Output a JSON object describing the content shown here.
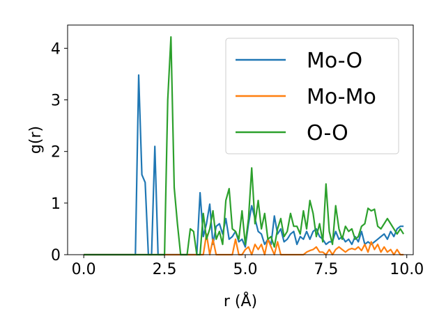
{
  "chart_data": {
    "type": "line",
    "xlabel": "r (Å)",
    "ylabel": "g(r)",
    "xlim": [
      -0.5,
      10.2
    ],
    "ylim": [
      0,
      4.45
    ],
    "xticks": [
      0.0,
      2.5,
      5.0,
      7.5,
      10.0
    ],
    "xtick_labels": [
      "0.0",
      "2.5",
      "5.0",
      "7.5",
      "10.0"
    ],
    "yticks": [
      0,
      1,
      2,
      3,
      4
    ],
    "ytick_labels": [
      "0",
      "1",
      "2",
      "3",
      "4"
    ],
    "grid": false,
    "legend_position": "top-right",
    "series": [
      {
        "name": "Mo-O",
        "color": "#1f77b4",
        "x": [
          0.0,
          1.6,
          1.7,
          1.8,
          1.9,
          2.0,
          2.1,
          2.2,
          2.3,
          3.5,
          3.6,
          3.7,
          3.8,
          3.9,
          4.0,
          4.1,
          4.2,
          4.3,
          4.4,
          4.5,
          4.6,
          4.7,
          4.8,
          4.9,
          5.0,
          5.1,
          5.2,
          5.3,
          5.4,
          5.5,
          5.6,
          5.7,
          5.8,
          5.9,
          6.0,
          6.1,
          6.2,
          6.3,
          6.4,
          6.5,
          6.6,
          6.7,
          6.8,
          6.9,
          7.0,
          7.1,
          7.2,
          7.3,
          7.4,
          7.5,
          7.6,
          7.7,
          7.8,
          7.9,
          8.0,
          8.1,
          8.2,
          8.3,
          8.4,
          8.5,
          8.6,
          8.7,
          8.8,
          8.9,
          9.0,
          9.1,
          9.2,
          9.3,
          9.4,
          9.5,
          9.6,
          9.7,
          9.8,
          9.9
        ],
        "y": [
          0,
          0,
          3.48,
          1.55,
          1.4,
          0,
          0,
          2.1,
          0,
          0,
          1.2,
          0.35,
          0.6,
          0.98,
          0.2,
          0.55,
          0.6,
          0.4,
          0.7,
          0.3,
          0.35,
          0.45,
          0.25,
          0.3,
          0.15,
          0.6,
          0.95,
          0.7,
          0.45,
          0.4,
          0.2,
          0.3,
          0.2,
          0.75,
          0.4,
          0.5,
          0.25,
          0.3,
          0.4,
          0.45,
          0.2,
          0.35,
          0.3,
          0.45,
          0.3,
          0.45,
          0.5,
          0.35,
          0.3,
          0.2,
          0.25,
          0.25,
          0.45,
          0.3,
          0.35,
          0.25,
          0.3,
          0.2,
          0.35,
          0.25,
          0.45,
          0.2,
          0.25,
          0.2,
          0.25,
          0.3,
          0.35,
          0.4,
          0.3,
          0.45,
          0.35,
          0.5,
          0.55,
          0.55
        ]
      },
      {
        "name": "Mo-Mo",
        "color": "#ff7f0e",
        "x": [
          0.0,
          3.7,
          3.8,
          3.9,
          4.0,
          4.1,
          4.6,
          4.7,
          4.8,
          4.9,
          5.0,
          5.1,
          5.2,
          5.3,
          5.4,
          5.5,
          5.6,
          5.7,
          5.8,
          5.9,
          6.0,
          6.1,
          6.8,
          6.9,
          7.0,
          7.1,
          7.2,
          7.3,
          7.4,
          7.5,
          7.6,
          7.7,
          7.8,
          7.9,
          8.0,
          8.1,
          8.2,
          8.3,
          8.4,
          8.5,
          8.6,
          8.7,
          8.8,
          8.9,
          9.0,
          9.1,
          9.2,
          9.3,
          9.4,
          9.5,
          9.6,
          9.7,
          9.8,
          9.9
        ],
        "y": [
          0,
          0,
          0.4,
          0,
          0.3,
          0,
          0,
          0.3,
          0,
          0,
          0.1,
          0.15,
          0,
          0.2,
          0.1,
          0.2,
          0,
          0.3,
          0.15,
          0,
          0.25,
          0,
          0,
          0.05,
          0.08,
          0.1,
          0.15,
          0.05,
          0.05,
          0,
          0.1,
          0,
          0.1,
          0.15,
          0.1,
          0.05,
          0.1,
          0.12,
          0.1,
          0.15,
          0.08,
          0.2,
          0.05,
          0.25,
          0.1,
          0.2,
          0.05,
          0.15,
          0.05,
          0.1,
          0,
          0.1,
          0,
          0
        ]
      },
      {
        "name": "O-O",
        "color": "#2ca02c",
        "x": [
          0.0,
          2.5,
          2.6,
          2.7,
          2.8,
          2.9,
          3.0,
          3.1,
          3.2,
          3.3,
          3.4,
          3.5,
          3.6,
          3.7,
          3.8,
          3.9,
          4.0,
          4.1,
          4.2,
          4.3,
          4.4,
          4.5,
          4.6,
          4.7,
          4.8,
          4.9,
          5.0,
          5.1,
          5.2,
          5.3,
          5.4,
          5.5,
          5.6,
          5.7,
          5.8,
          5.9,
          6.0,
          6.1,
          6.2,
          6.3,
          6.4,
          6.5,
          6.6,
          6.7,
          6.8,
          6.9,
          7.0,
          7.1,
          7.2,
          7.3,
          7.4,
          7.5,
          7.6,
          7.7,
          7.8,
          7.9,
          8.0,
          8.1,
          8.2,
          8.3,
          8.4,
          8.5,
          8.6,
          8.7,
          8.8,
          8.9,
          9.0,
          9.1,
          9.2,
          9.3,
          9.4,
          9.5,
          9.6,
          9.7,
          9.8,
          9.9
        ],
        "y": [
          0,
          0,
          3.0,
          4.22,
          1.3,
          0.6,
          0,
          0,
          0,
          0.5,
          0.45,
          0,
          0,
          0.8,
          0.3,
          0.5,
          0.85,
          0.3,
          0.45,
          0.2,
          1.05,
          1.28,
          0.5,
          0.45,
          0.3,
          0.85,
          0.2,
          0.7,
          1.68,
          0.6,
          1.05,
          0.5,
          0.8,
          0.3,
          0.35,
          0.15,
          0.5,
          0.7,
          0.35,
          0.45,
          0.8,
          0.55,
          0.55,
          0.4,
          0.85,
          0.5,
          1.05,
          0.8,
          0.35,
          0.6,
          0.25,
          1.37,
          0.45,
          0.2,
          0.95,
          0.5,
          0.3,
          0.55,
          0.45,
          0.5,
          0.3,
          0.35,
          0.55,
          0.6,
          0.9,
          0.85,
          0.88,
          0.55,
          0.5,
          0.6,
          0.7,
          0.6,
          0.5,
          0.4,
          0.5,
          0.4
        ]
      }
    ]
  }
}
